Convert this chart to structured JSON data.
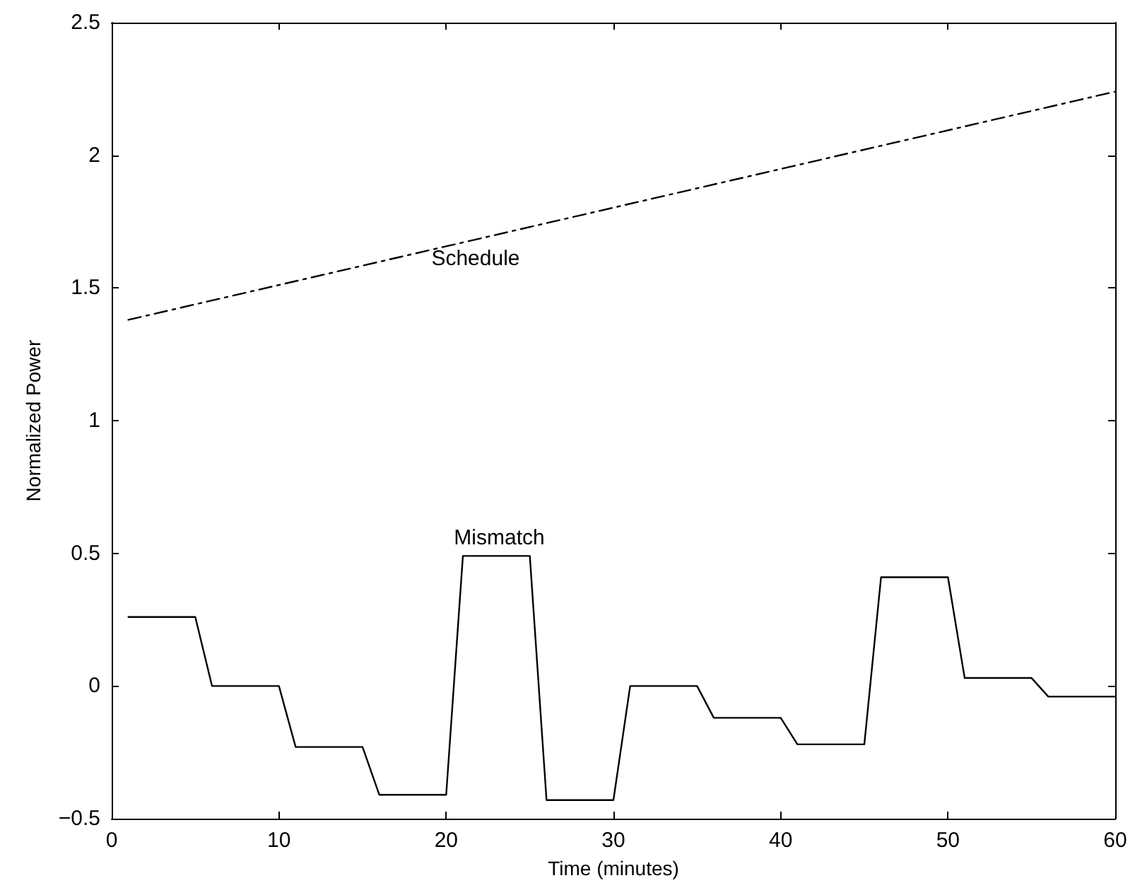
{
  "chart_data": {
    "type": "line",
    "xlabel": "Time (minutes)",
    "ylabel": "Normalized Power",
    "xlim": [
      0,
      60
    ],
    "xticks": [
      0,
      10,
      20,
      30,
      40,
      50,
      60
    ],
    "ylim": [
      -0.5,
      2.5
    ],
    "yticks": [
      {
        "value": -0.5,
        "label": "−0.5"
      },
      0,
      0.5,
      1,
      1.5,
      2,
      2.5
    ],
    "grid": false,
    "legend": false,
    "marker": "none",
    "series": [
      {
        "name": "Schedule",
        "color": "#000000",
        "line_style": "dashed",
        "x": [
          1,
          60
        ],
        "values": [
          1.38,
          2.24
        ]
      },
      {
        "name": "Mismatch",
        "color": "#000000",
        "line_style": "solid",
        "x": [
          1,
          5,
          6,
          10,
          11,
          15,
          16,
          20,
          21,
          25,
          26,
          30,
          31,
          35,
          36,
          40,
          41,
          45,
          46,
          50,
          51,
          55,
          56,
          60
        ],
        "values": [
          0.26,
          0.26,
          0,
          0,
          -0.23,
          -0.23,
          -0.41,
          -0.41,
          0.49,
          0.49,
          -0.43,
          -0.43,
          0,
          0,
          -0.12,
          -0.12,
          -0.22,
          -0.22,
          0.41,
          0.41,
          0.03,
          0.03,
          -0.04,
          -0.04
        ]
      }
    ]
  }
}
